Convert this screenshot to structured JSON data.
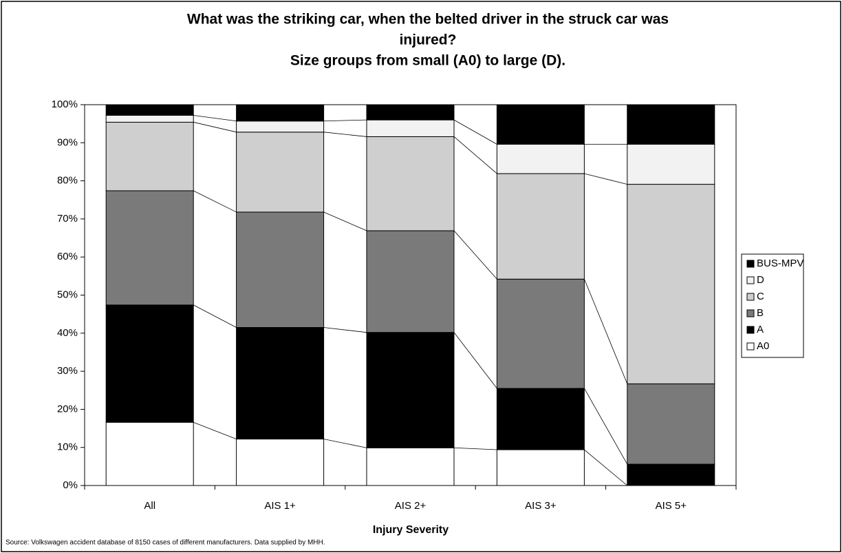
{
  "chart_data": {
    "type": "stacked_bar",
    "title": [
      "What was the striking car, when the belted driver in the struck car was",
      "injured?",
      "Size groups from small (A0) to large (D)."
    ],
    "x_label": "Injury Severity",
    "source": "Source: Volkswagen accident database of 8150 cases of different manufacturers. Data supplied by MHH.",
    "categories": [
      "All",
      "AIS 1+",
      "AIS 2+",
      "AIS 3+",
      "AIS 5+"
    ],
    "series": [
      {
        "name": "A0",
        "color": "#ffffff",
        "values": [
          16.6,
          12.2,
          9.9,
          9.4,
          0
        ]
      },
      {
        "name": "A",
        "color": "#000000",
        "values": [
          30.8,
          29.3,
          30.3,
          16.1,
          5.6
        ]
      },
      {
        "name": "B",
        "color": "#7a7a7a",
        "values": [
          30,
          30.3,
          26.7,
          28.7,
          21.1
        ]
      },
      {
        "name": "C",
        "color": "#cfcfcf",
        "values": [
          18,
          21,
          24.7,
          27.7,
          52.4
        ]
      },
      {
        "name": "D",
        "color": "#f2f2f2",
        "values": [
          1.8,
          2.9,
          4.4,
          7.7,
          10.5
        ]
      },
      {
        "name": "BUS-MPV",
        "color": "#000000",
        "values": [
          2.8,
          4.3,
          4,
          10.4,
          10.4
        ]
      }
    ],
    "ylim": [
      0,
      100
    ],
    "yticks": [
      {
        "value": 0,
        "label": "0%"
      },
      {
        "value": 10,
        "label": "10%"
      },
      {
        "value": 20,
        "label": "20%"
      },
      {
        "value": 30,
        "label": "30%"
      },
      {
        "value": 40,
        "label": "40%"
      },
      {
        "value": 50,
        "label": "50%"
      },
      {
        "value": 60,
        "label": "60%"
      },
      {
        "value": 70,
        "label": "70%"
      },
      {
        "value": 80,
        "label": "80%"
      },
      {
        "value": 90,
        "label": "90%"
      },
      {
        "value": 100,
        "label": "100%"
      }
    ],
    "legend": "right"
  }
}
